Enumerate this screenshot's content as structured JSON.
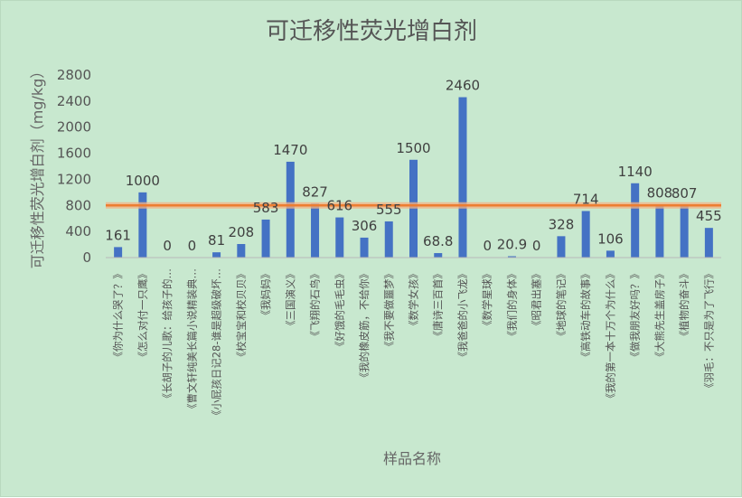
{
  "chart_data": {
    "type": "bar",
    "title": "可迁移性荧光增白剂",
    "xlabel": "样品名称",
    "ylabel": "可迁移性荧光增白剂（mg/kg）",
    "ylim": [
      0,
      2800
    ],
    "yticks": [
      0,
      400,
      800,
      1200,
      1600,
      2000,
      2400,
      2800
    ],
    "grid": false,
    "categories": [
      "《你为什么哭了？》",
      "《怎么对付一只鹰》",
      "《长胡子的儿歌：给孩子的…",
      "《曹文轩纯美长篇小说精装典…",
      "《小屁孩日记28-谁是超级破坏…",
      "《校宝宝和校贝贝》",
      "《我妈妈》",
      "《三国演义》",
      "《飞翔的石鸟》",
      "《好饿的毛毛虫》",
      "《我的橡皮筋，不给你》",
      "《我不要做噩梦》",
      "《数学女孩》",
      "《唐诗三百首》",
      "《我爸爸的小飞龙》",
      "《数学星球》",
      "《我们的身体》",
      "《昭君出塞》",
      "《地球的笔记》",
      "《高铁动车的故事》",
      "《我的第一本十万个为什么》",
      "《做我朋友好吗？》",
      "《大熊先生盖房子》",
      "《植物的奋斗》",
      "《羽毛：不只是为了飞行》"
    ],
    "series": [
      {
        "type": "bar",
        "color": "#4472c4",
        "values": [
          161,
          1000,
          0,
          0,
          81,
          208,
          583,
          1470,
          827,
          616,
          306,
          555,
          1500,
          68.8,
          2460,
          0,
          20.9,
          0,
          328,
          714,
          106,
          1140,
          808,
          807,
          455
        ],
        "labels": [
          "161",
          "1000",
          "0",
          "0",
          "81",
          "208",
          "583",
          "1470",
          "827",
          "616",
          "306",
          "555",
          "1500",
          "68.8",
          "2460",
          "0",
          "20.9",
          "0",
          "328",
          "714",
          "106",
          "1140",
          "808",
          "807",
          "455"
        ]
      },
      {
        "type": "line",
        "color": "#ed7d31",
        "value": 800
      }
    ]
  }
}
